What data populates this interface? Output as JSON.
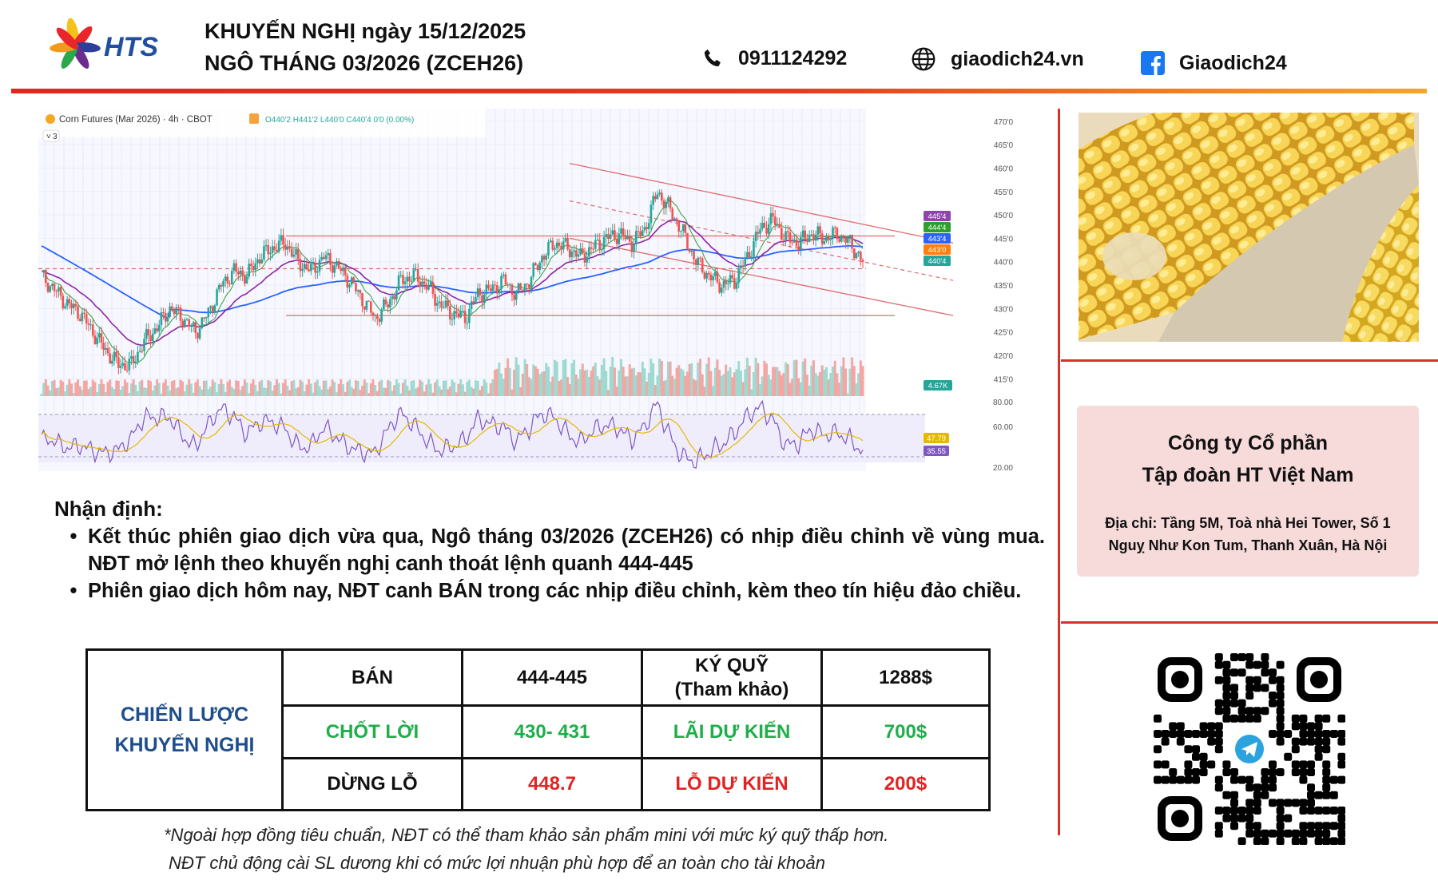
{
  "header": {
    "logo_text": "HTS",
    "title_line1": "KHUYẾN NGHỊ ngày 15/12/2025",
    "title_line2": "NGÔ THÁNG 03/2026 (ZCEH26)",
    "phone": "0911124292",
    "website": "giaodich24.vn",
    "facebook": "Giaodich24",
    "phone_icon": "phone-icon",
    "web_icon": "globe-icon",
    "fb_icon": "facebook-icon"
  },
  "chart_header": {
    "symbol": "Corn Futures (Mar 2026) · 4h · CBOT",
    "ohlc": "O440'2 H441'2 L440'0 C440'4 0'0 (0.00%)",
    "indicator_count": "3"
  },
  "chart_data": {
    "type": "line",
    "title": "Corn Futures (Mar 2026) · 4h · CBOT",
    "price_axis_ticks": [
      "470'0",
      "465'0",
      "460'0",
      "455'0",
      "450'0",
      "445'0",
      "440'0",
      "435'0",
      "430'0",
      "425'0",
      "420'0",
      "415'0"
    ],
    "price_labels": [
      {
        "text": "445'4",
        "color": "#8e44ad"
      },
      {
        "text": "444'4",
        "color": "#2ca02c"
      },
      {
        "text": "443'4",
        "color": "#2962ff"
      },
      {
        "text": "443'0",
        "color": "#ff7f0e"
      },
      {
        "text": "440'4",
        "color": "#26a69a"
      }
    ],
    "volume_label": {
      "text": "4.67K",
      "color": "#26a69a"
    },
    "rsi_axis_ticks": [
      "80.00",
      "60.00",
      "20.00"
    ],
    "rsi_labels": [
      {
        "text": "47.79",
        "color": "#e6b800"
      },
      {
        "text": "35.55",
        "color": "#7e57c2"
      }
    ],
    "price_series_approx": [
      437,
      434,
      431,
      429,
      425,
      421,
      418,
      418,
      423,
      426,
      430,
      428,
      425,
      429,
      435,
      438,
      437,
      441,
      443,
      444,
      440,
      438,
      441,
      439,
      436,
      432,
      428,
      431,
      436,
      437,
      435,
      431,
      429,
      428,
      433,
      434,
      436,
      433,
      436,
      441,
      444,
      443,
      441,
      443,
      445,
      446,
      444,
      447,
      455,
      451,
      446,
      440,
      437,
      435,
      436,
      441,
      447,
      449,
      445,
      444,
      446,
      445,
      446,
      444,
      440
    ],
    "horizontal_levels": [
      445.5,
      438.5,
      428.5
    ],
    "ylim": [
      413,
      471
    ],
    "grid": true
  },
  "commentary": {
    "heading": "Nhận định:",
    "bullets": [
      "Kết thúc phiên giao dịch vừa qua, Ngô tháng 03/2026 (ZCEH26) có nhịp điều chỉnh về vùng mua. NĐT mở lệnh theo khuyến nghị canh thoát lệnh quanh 444-445",
      "Phiên giao dịch hôm nay, NĐT canh BÁN trong các nhịp điều chỉnh, kèm theo tín hiệu đảo chiều."
    ]
  },
  "strategy": {
    "label": "CHIẾN LƯỢC KHUYẾN NGHỊ",
    "rows": [
      {
        "a": "BÁN",
        "b": "444-445",
        "c": "KÝ QUỸ\n(Tham khảo)",
        "d": "1288$"
      },
      {
        "a": "CHỐT LỜI",
        "b": "430- 431",
        "c": "LÃI DỰ KIẾN",
        "d": "700$"
      },
      {
        "a": "DỪNG LỖ",
        "b": "448.7",
        "c": "LỖ DỰ KIẾN",
        "d": "200$"
      }
    ]
  },
  "footnotes": {
    "line1": "*Ngoài hợp đồng tiêu chuẩn, NĐT có thể tham khảo sản phẩm mini với mức ký quỹ thấp hơn.",
    "line2": "NĐT chủ động cài SL dương khi có mức lợi nhuận phù hợp để an toàn cho tài khoản"
  },
  "company": {
    "name_line1": "Công ty Cổ phần",
    "name_line2": "Tập đoàn HT Việt Nam",
    "address_line1": "Địa chỉ: Tầng 5M, Toà nhà Hei Tower, Số 1",
    "address_line2": "Nguỵ Như Kon Tum, Thanh Xuân, Hà Nội"
  },
  "colors": {
    "accent_red": "#e0261f",
    "brand_blue": "#1f4e8c",
    "profit_green": "#1fae4a",
    "loss_red": "#e32222",
    "company_bg": "#f7dada"
  },
  "icons": {
    "qr": "qr-code-telegram",
    "corn_photo": "corn-image"
  }
}
